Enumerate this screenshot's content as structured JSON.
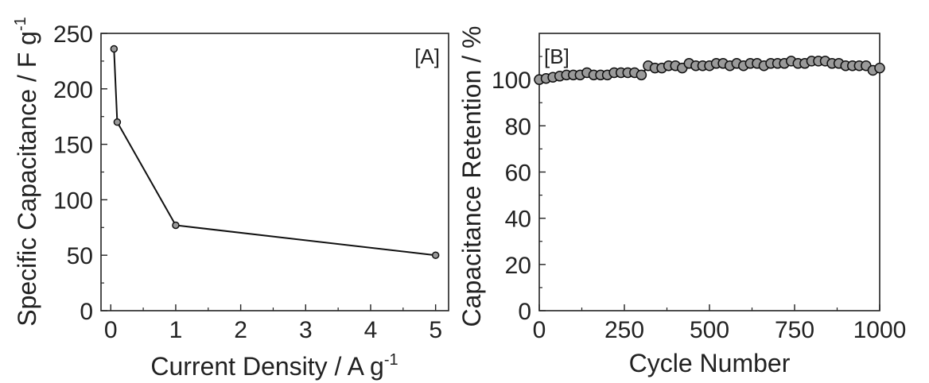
{
  "chart_data": [
    {
      "panel": "[A]",
      "type": "line",
      "xlabel": "Current Density / A g",
      "xlabel_sup": "-1",
      "ylabel": "Specific Capacitance / F g",
      "ylabel_sup": "-1",
      "xlim": [
        -0.15,
        5.2
      ],
      "ylim": [
        0,
        250
      ],
      "x_ticks": [
        "0",
        "1",
        "2",
        "3",
        "4",
        "5"
      ],
      "y_ticks": [
        "0",
        "50",
        "100",
        "150",
        "200",
        "250"
      ],
      "grid": false,
      "series": [
        {
          "x": [
            0.05,
            0.1,
            1,
            5
          ],
          "y": [
            236,
            170,
            77,
            50
          ]
        }
      ]
    },
    {
      "panel": "[B]",
      "type": "line",
      "xlabel": "Cycle Number",
      "ylabel": "Capacitance Retention / %",
      "xlim": [
        0,
        1000
      ],
      "ylim": [
        0,
        120
      ],
      "x_ticks": [
        "0",
        "250",
        "500",
        "750",
        "1000"
      ],
      "y_ticks": [
        "0",
        "20",
        "40",
        "60",
        "80",
        "100"
      ],
      "grid": false,
      "series": [
        {
          "x": [
            0,
            20,
            40,
            60,
            80,
            100,
            120,
            140,
            160,
            180,
            200,
            220,
            240,
            260,
            280,
            300,
            320,
            340,
            360,
            380,
            400,
            420,
            440,
            460,
            480,
            500,
            520,
            540,
            560,
            580,
            600,
            620,
            640,
            660,
            680,
            700,
            720,
            740,
            760,
            780,
            800,
            820,
            840,
            860,
            880,
            900,
            920,
            940,
            960,
            980,
            1000
          ],
          "y": [
            100,
            100.5,
            101,
            101.5,
            102,
            102,
            102,
            103,
            102,
            102,
            102,
            103,
            103,
            103,
            103,
            102,
            106,
            105,
            105,
            106,
            106,
            105,
            107,
            106,
            106,
            106,
            107,
            107,
            106,
            107,
            106,
            107,
            107,
            106,
            107,
            107,
            107,
            108,
            107,
            107,
            108,
            108,
            108,
            107,
            107,
            106,
            106,
            106,
            106,
            104,
            105
          ]
        }
      ]
    }
  ]
}
